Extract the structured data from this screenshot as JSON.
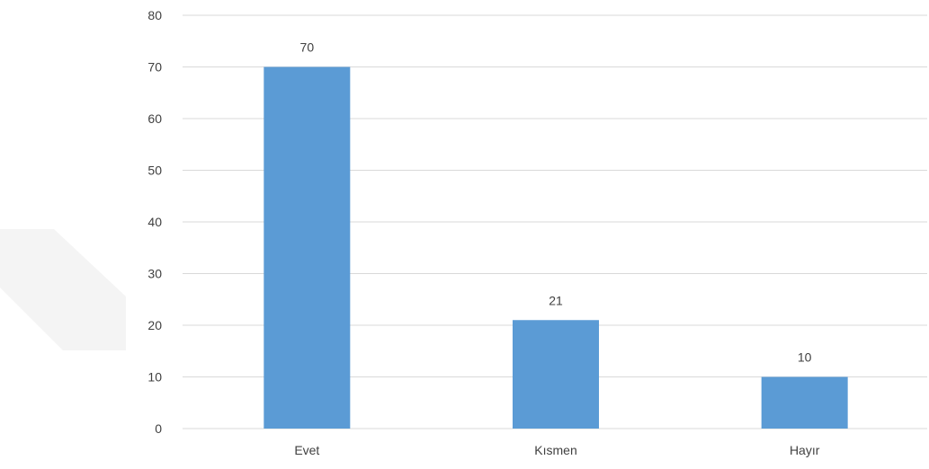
{
  "chart_data": {
    "type": "bar",
    "title": "",
    "xlabel": "",
    "ylabel": "",
    "categories": [
      "Evet",
      "Kısmen",
      "Hayır"
    ],
    "values": [
      70,
      21,
      10
    ],
    "data_labels": [
      "70",
      "21",
      "10"
    ],
    "ylim": [
      0,
      80
    ],
    "yticks": [
      0,
      10,
      20,
      30,
      40,
      50,
      60,
      70,
      80
    ],
    "ytick_labels": [
      "0",
      "10",
      "20",
      "30",
      "40",
      "50",
      "60",
      "70",
      "80"
    ],
    "grid": true,
    "legend": "none",
    "bar_color": "#5b9bd5"
  }
}
